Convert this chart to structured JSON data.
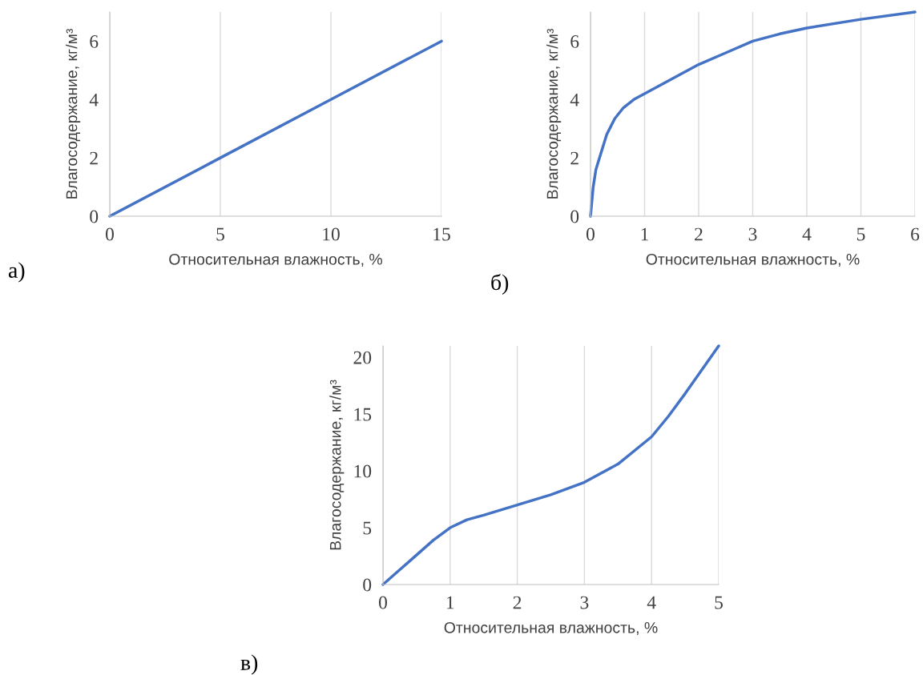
{
  "chart_data": [
    {
      "type": "line",
      "xlabel": "Относительная влажность, %",
      "ylabel": "Влагосодержание, кг/м³",
      "annotations": [
        "а)"
      ],
      "grid": "x",
      "color": "#4472c4",
      "x": [
        0,
        5,
        10,
        15
      ],
      "values": [
        0,
        2,
        4,
        6
      ],
      "xlim": [
        0,
        15
      ],
      "xticks": [
        0,
        5,
        10,
        15
      ],
      "ylim": [
        0,
        7
      ],
      "yticks": [
        0,
        2,
        4,
        6
      ]
    },
    {
      "type": "line",
      "xlabel": "Относительная влажность, %",
      "ylabel": "Влагосодержание, кг/м³",
      "annotations": [
        "б)"
      ],
      "grid": "x",
      "color": "#4472c4",
      "x": [
        0,
        0.05,
        0.1,
        0.2,
        0.3,
        0.45,
        0.6,
        0.8,
        1,
        1.5,
        2,
        2.5,
        3,
        3.5,
        4,
        5,
        6
      ],
      "values": [
        0,
        1,
        1.6,
        2.2,
        2.8,
        3.35,
        3.7,
        4,
        4.2,
        4.7,
        5.2,
        5.6,
        6,
        6.25,
        6.45,
        6.75,
        7
      ],
      "xlim": [
        0,
        6
      ],
      "xticks": [
        0,
        1,
        2,
        3,
        4,
        5,
        6
      ],
      "ylim": [
        0,
        7
      ],
      "yticks": [
        0,
        2,
        4,
        6
      ]
    },
    {
      "type": "line",
      "xlabel": "Относительная влажность, %",
      "ylabel": "Влагосодержание, кг/м³",
      "annotations": [
        "в)"
      ],
      "grid": "x",
      "color": "#4472c4",
      "x": [
        0,
        0.25,
        0.5,
        0.75,
        1,
        1.25,
        1.5,
        2,
        2.5,
        3,
        3.5,
        4,
        4.25,
        4.5,
        4.75,
        5
      ],
      "values": [
        0,
        1.3,
        2.6,
        3.9,
        5,
        5.7,
        6.1,
        7,
        7.9,
        9,
        10.6,
        13,
        14.8,
        16.8,
        18.9,
        21
      ],
      "xlim": [
        0,
        5
      ],
      "xticks": [
        0,
        1,
        2,
        3,
        4,
        5
      ],
      "ylim": [
        0,
        21
      ],
      "yticks": [
        0,
        5,
        10,
        15,
        20
      ]
    }
  ]
}
